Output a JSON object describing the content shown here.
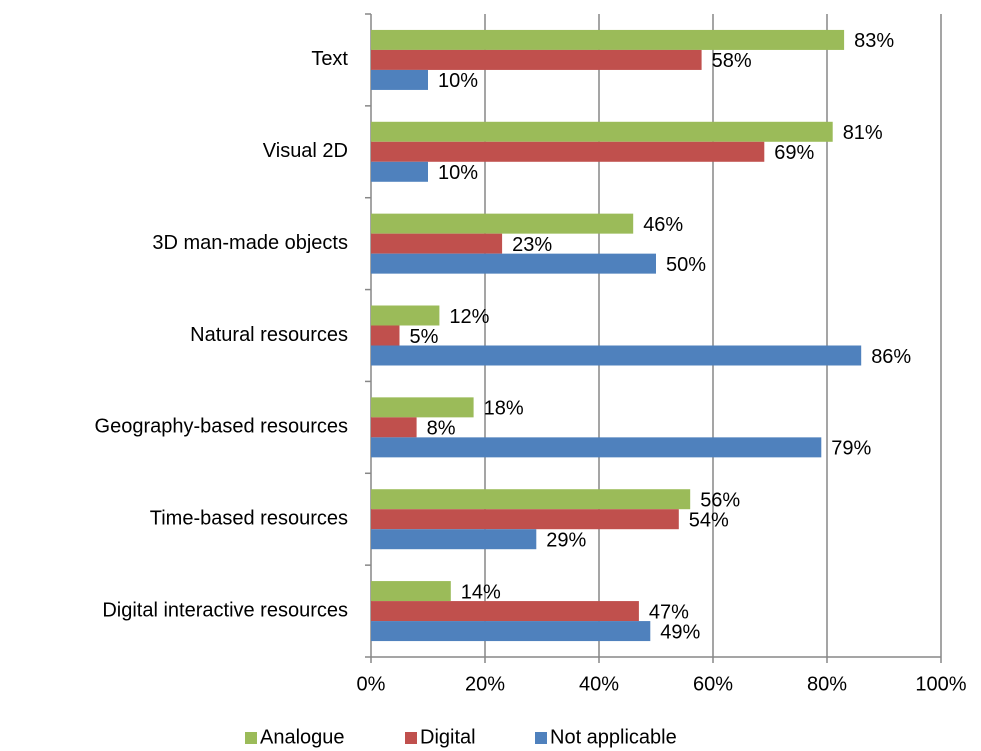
{
  "chart_data": {
    "type": "bar",
    "orientation": "horizontal",
    "categories": [
      "Text",
      "Visual 2D",
      "3D man-made objects",
      "Natural resources",
      "Geography-based resources",
      "Time-based resources",
      "Digital interactive resources"
    ],
    "series": [
      {
        "name": "Analogue",
        "color": "#9bbb59",
        "values": [
          83,
          81,
          46,
          12,
          18,
          56,
          14
        ],
        "value_labels": [
          "83%",
          "81%",
          "46%",
          "12%",
          "18%",
          "56%",
          "14%"
        ]
      },
      {
        "name": "Digital",
        "color": "#c0504d",
        "values": [
          58,
          69,
          23,
          5,
          8,
          54,
          47
        ],
        "value_labels": [
          "58%",
          "69%",
          "23%",
          "5%",
          "8%",
          "54%",
          "47%"
        ]
      },
      {
        "name": "Not applicable",
        "color": "#4f81bd",
        "values": [
          10,
          10,
          50,
          86,
          79,
          29,
          49
        ],
        "value_labels": [
          "10%",
          "10%",
          "50%",
          "86%",
          "79%",
          "29%",
          "49%"
        ]
      }
    ],
    "xlim": [
      0,
      100
    ],
    "xticks": [
      {
        "value": 0,
        "label": "0%"
      },
      {
        "value": 20,
        "label": "20%"
      },
      {
        "value": 40,
        "label": "40%"
      },
      {
        "value": 60,
        "label": "60%"
      },
      {
        "value": 80,
        "label": "80%"
      },
      {
        "value": 100,
        "label": "100%"
      }
    ],
    "grid": true,
    "legend": "bottom"
  }
}
